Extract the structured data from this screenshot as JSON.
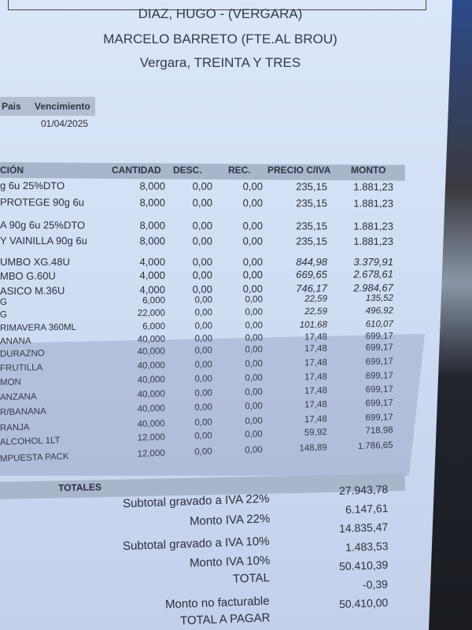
{
  "header": {
    "customer": "DIAZ, HUGO  - (VERGARA)",
    "address": "MARCELO BARRETO (FTE.AL BROU)",
    "city": "Vergara, TREINTA Y TRES",
    "pais_label": "Pais",
    "vencimiento_label": "Vencimiento",
    "vencimiento": "01/04/2025"
  },
  "table": {
    "columns": [
      "CIÓN",
      "CANTIDAD",
      "DESC.",
      "REC.",
      "PRECIO C/IVA",
      "MONTO"
    ],
    "rows": [
      {
        "desc": "g 6u 25%DTO",
        "qty": "8,000",
        "dsc": "0,00",
        "rec": "0,00",
        "price": "235,15",
        "amt": "1.881,23"
      },
      {
        "desc": "PROTEGE 90g 6u",
        "qty": "8,000",
        "dsc": "0,00",
        "rec": "0,00",
        "price": "235,15",
        "amt": "1.881,23"
      },
      {
        "desc": "A 90g 6u 25%DTO",
        "qty": "8,000",
        "dsc": "0,00",
        "rec": "0,00",
        "price": "235,15",
        "amt": "1.881,23"
      },
      {
        "desc": "Y VAINILLA 90g 6u",
        "qty": "8,000",
        "dsc": "0,00",
        "rec": "0,00",
        "price": "235,15",
        "amt": "1.881,23"
      },
      {
        "desc": "UMBO XG.48U",
        "qty": "4,000",
        "dsc": "0,00",
        "rec": "0,00",
        "price": "844,98",
        "amt": "3.379,91"
      },
      {
        "desc": "MBO G.60U",
        "qty": "4,000",
        "dsc": "0,00",
        "rec": "0,00",
        "price": "669,65",
        "amt": "2.678,61"
      },
      {
        "desc": "ASICO M.36U",
        "qty": "4,000",
        "dsc": "0,00",
        "rec": "0,00",
        "price": "746,17",
        "amt": "2.984,67"
      },
      {
        "desc": "G",
        "qty": "6,000",
        "dsc": "0,00",
        "rec": "0,00",
        "price": "22,59",
        "amt": "135,52"
      },
      {
        "desc": "G",
        "qty": "22,000",
        "dsc": "0,00",
        "rec": "0,00",
        "price": "22,59",
        "amt": "496,92"
      },
      {
        "desc": "RIMAVERA 360ML",
        "qty": "6,000",
        "dsc": "0,00",
        "rec": "0,00",
        "price": "101,68",
        "amt": "610,07"
      },
      {
        "desc": "ANANA",
        "qty": "40,000",
        "dsc": "0,00",
        "rec": "0,00",
        "price": "17,48",
        "amt": "699,17"
      },
      {
        "desc": "DURAZNO",
        "qty": "40,000",
        "dsc": "0,00",
        "rec": "0,00",
        "price": "17,48",
        "amt": "699,17"
      },
      {
        "desc": "FRUTILLA",
        "qty": "40,000",
        "dsc": "0,00",
        "rec": "0,00",
        "price": "17,48",
        "amt": "699,17"
      },
      {
        "desc": "MON",
        "qty": "40,000",
        "dsc": "0,00",
        "rec": "0,00",
        "price": "17,48",
        "amt": "699,17"
      },
      {
        "desc": "ANZANA",
        "qty": "40,000",
        "dsc": "0,00",
        "rec": "0,00",
        "price": "17,48",
        "amt": "699,17"
      },
      {
        "desc": "R/BANANA",
        "qty": "40,000",
        "dsc": "0,00",
        "rec": "0,00",
        "price": "17,48",
        "amt": "699,17"
      },
      {
        "desc": "RANJA",
        "qty": "40,000",
        "dsc": "0,00",
        "rec": "0,00",
        "price": "17,48",
        "amt": "699,17"
      },
      {
        "desc": "ALCOHOL 1LT",
        "qty": "12,000",
        "dsc": "0,00",
        "rec": "0,00",
        "price": "59,92",
        "amt": "718,98"
      },
      {
        "desc": "MPUESTA PACK",
        "qty": "12,000",
        "dsc": "0,00",
        "rec": "0,00",
        "price": "148,89",
        "amt": "1.786,65"
      }
    ]
  },
  "totals": {
    "title": "TOTALES",
    "items": [
      {
        "label": "Subtotal gravado a IVA 22%",
        "value": "27.943,78"
      },
      {
        "label": "Monto IVA 22%",
        "value": "6.147,61"
      },
      {
        "label": "Subtotal gravado a IVA 10%",
        "value": "14.835,47"
      },
      {
        "label": "Monto IVA 10%",
        "value": "1.483,53"
      },
      {
        "label": "TOTAL",
        "value": "50.410,39"
      },
      {
        "label": "Monto no facturable",
        "value": "-0,39"
      },
      {
        "label": "TOTAL A PAGAR",
        "value": "50.410,00"
      }
    ]
  }
}
